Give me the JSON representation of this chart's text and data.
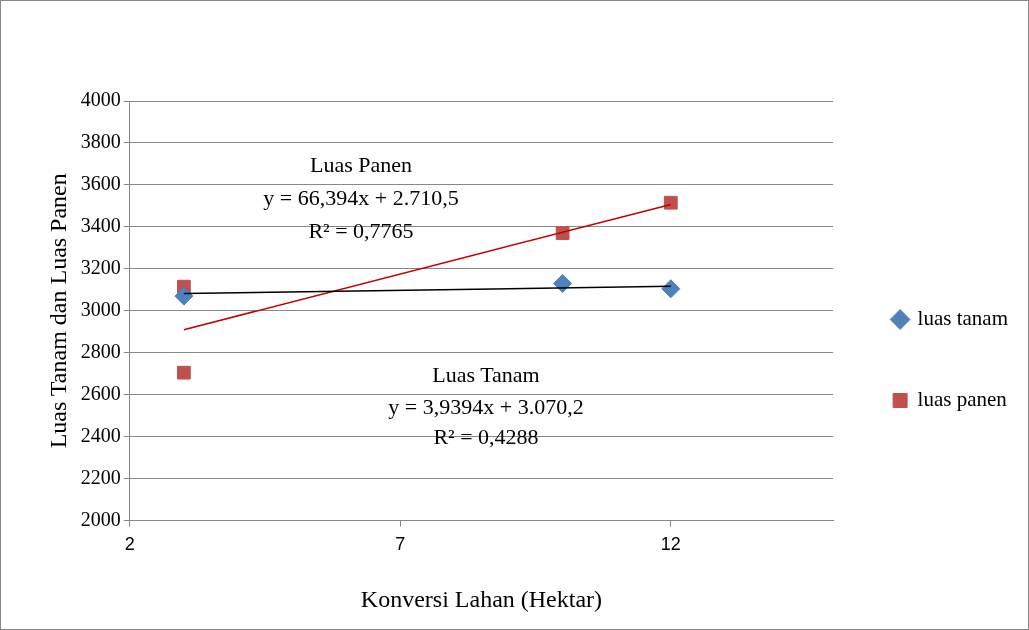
{
  "chart_data": {
    "type": "scatter",
    "xlabel": "Konversi Lahan (Hektar)",
    "ylabel": "Luas Tanam dan Luas Panen",
    "xlim": [
      2,
      15
    ],
    "xticks": [
      2,
      7,
      12
    ],
    "ylim": [
      2000,
      4000
    ],
    "yticks": [
      2000,
      2200,
      2400,
      2600,
      2800,
      3000,
      3200,
      3400,
      3600,
      3800,
      4000
    ],
    "grid": "y",
    "legend": "right",
    "series": [
      {
        "name": "luas tanam",
        "color": "#4f81bd",
        "marker": "diamond",
        "x": [
          3,
          10,
          12
        ],
        "values": [
          3070,
          3130,
          3105
        ]
      },
      {
        "name": "luas panen",
        "color": "#c0504d",
        "marker": "square",
        "x": [
          3,
          3,
          10,
          12
        ],
        "values": [
          3115,
          2705,
          3370,
          3515
        ]
      },
      {
        "type": "line",
        "color": "#000000",
        "marker": "none",
        "x": [
          3,
          12
        ],
        "values": [
          3082,
          3117
        ]
      },
      {
        "type": "line",
        "color": "#c00000",
        "marker": "none",
        "x": [
          3,
          12
        ],
        "values": [
          2910,
          3507
        ]
      }
    ],
    "annotations": [
      "Luas Panen",
      "y = 66,394x + 2.710,5",
      "R² = 0,7765",
      "Luas Tanam",
      "y = 3,9394x + 3.070,2",
      "R² = 0,4288"
    ]
  }
}
